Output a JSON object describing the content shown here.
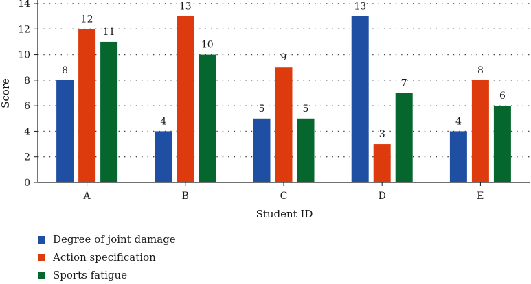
{
  "chart_data": {
    "type": "bar",
    "xlabel": "Student ID",
    "ylabel": "Score",
    "ylim": [
      0,
      14
    ],
    "yticks": [
      "0",
      "2",
      "4",
      "6",
      "8",
      "10",
      "12",
      "14"
    ],
    "categories": [
      "A",
      "B",
      "C",
      "D",
      "E"
    ],
    "series": [
      {
        "name": "Degree of joint damage",
        "color": "#1f4fa3",
        "values": [
          8,
          4,
          5,
          13,
          4
        ]
      },
      {
        "name": "Action specification",
        "color": "#dd3b0e",
        "values": [
          12,
          13,
          9,
          3,
          8
        ]
      },
      {
        "name": "Sports fatigue",
        "color": "#05672e",
        "values": [
          11,
          10,
          5,
          7,
          6
        ]
      }
    ],
    "grid": "horizontal-dotted",
    "legend_position": "bottom-left"
  }
}
